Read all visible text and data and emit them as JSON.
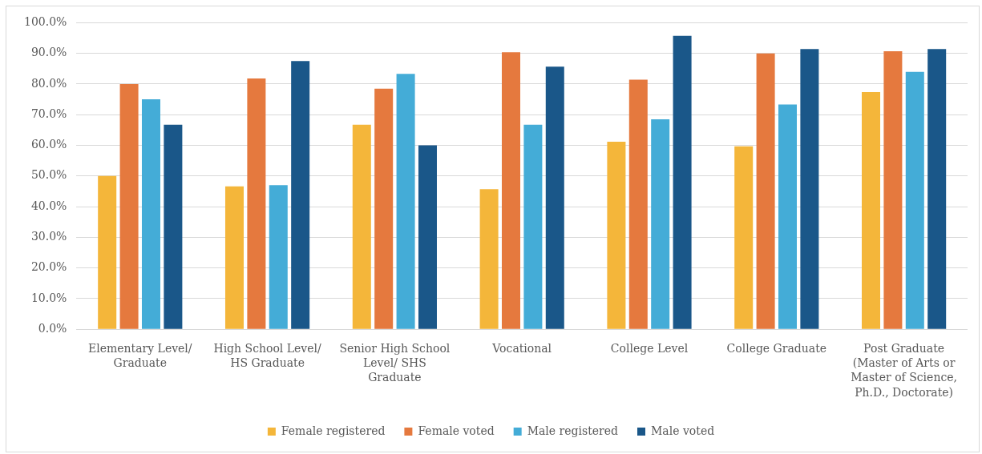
{
  "chart_data": {
    "type": "bar",
    "categories": [
      "Elementary Level/ Graduate",
      "High School Level/ HS Graduate",
      "Senior High School Level/ SHS Graduate",
      "Vocational",
      "College Level",
      "College Graduate",
      "Post Graduate (Master of Arts or Master of Science, Ph.D., Doctorate)"
    ],
    "series": [
      {
        "name": "Female registered",
        "color": "#f4b63a",
        "values": [
          50.0,
          46.6,
          66.7,
          45.7,
          61.2,
          59.7,
          77.4
        ]
      },
      {
        "name": "Female voted",
        "color": "#e5793e",
        "values": [
          80.0,
          81.8,
          78.5,
          90.4,
          81.4,
          90.0,
          90.7
        ]
      },
      {
        "name": "Male registered",
        "color": "#44acd7",
        "values": [
          75.0,
          47.0,
          83.3,
          66.7,
          68.5,
          73.3,
          84.0
        ]
      },
      {
        "name": "Male voted",
        "color": "#1a5789",
        "values": [
          66.7,
          87.5,
          60.0,
          85.7,
          95.7,
          91.4,
          91.4
        ]
      }
    ],
    "ylim": [
      0,
      100
    ],
    "yticks": [
      {
        "value": 0,
        "label": "0.0%"
      },
      {
        "value": 10,
        "label": "10.0%"
      },
      {
        "value": 20,
        "label": "20.0%"
      },
      {
        "value": 30,
        "label": "30.0%"
      },
      {
        "value": 40,
        "label": "40.0%"
      },
      {
        "value": 50,
        "label": "50.0%"
      },
      {
        "value": 60,
        "label": "60.0%"
      },
      {
        "value": 70,
        "label": "70.0%"
      },
      {
        "value": 80,
        "label": "80.0%"
      },
      {
        "value": 90,
        "label": "90.0%"
      },
      {
        "value": 100,
        "label": "100.0%"
      }
    ],
    "grid": "y",
    "legend": "bottom"
  }
}
